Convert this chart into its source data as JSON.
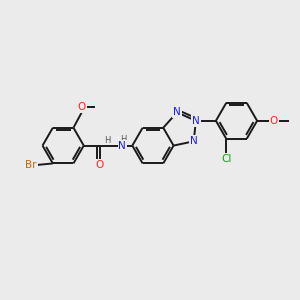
{
  "bg_color": "#ebebeb",
  "bond_color": "#1a1a1a",
  "bond_width": 1.4,
  "colors": {
    "N": "#1a1aff",
    "O": "#ff2222",
    "Br": "#cc6600",
    "Cl": "#00aa00"
  },
  "font_size": 7.5
}
